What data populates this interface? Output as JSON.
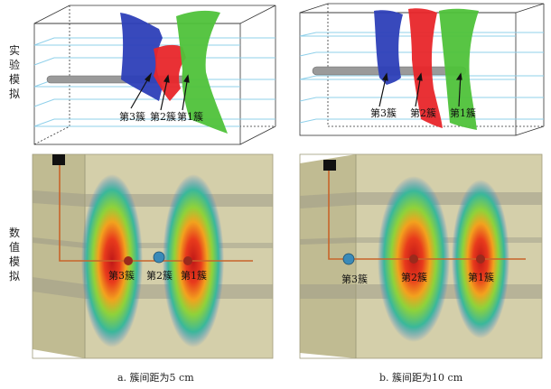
{
  "row_labels": {
    "experiment": "实验模拟",
    "numerical": "数值模拟"
  },
  "cluster_labels": {
    "c1": "第1簇",
    "c2": "第2簇",
    "c3": "第3簇"
  },
  "captions": {
    "a": "a. 簇间距为5 cm",
    "b": "b. 簇间距为10 cm"
  },
  "colors": {
    "cluster1_green": "#4fc23a",
    "cluster2_red": "#e8262a",
    "cluster3_blue": "#2d3fb8",
    "rock_block": "#c9c49a",
    "grid_lines": "#8fd0ea",
    "wellbore": "#9a9a9a",
    "wellbore_line": "#c8642a"
  }
}
